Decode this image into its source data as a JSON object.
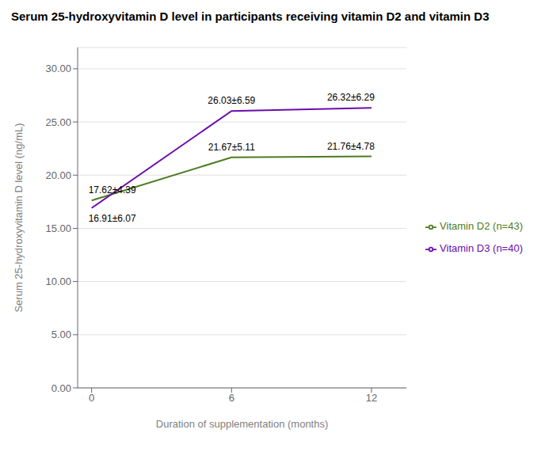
{
  "chart_data": {
    "type": "line",
    "title": "Serum 25-hydroxyvitamin D level in participants receiving vitamin D2 and vitamin D3",
    "xlabel": "Duration of supplementation (months)",
    "ylabel": "Serum 25-hydroxyvitamin D level (ng/mL)",
    "x": [
      0,
      6,
      12
    ],
    "series": [
      {
        "name": "Vitamin D2 (n=43)",
        "color": "#4d7c1f",
        "values": [
          17.62,
          21.67,
          21.76
        ],
        "value_labels": [
          "17.62±4.39",
          "21.67±5.11",
          "21.76±4.78"
        ]
      },
      {
        "name": "Vitamin D3 (n=40)",
        "color": "#6a0dad",
        "values": [
          16.91,
          26.03,
          26.32
        ],
        "value_labels": [
          "16.91±6.07",
          "26.03±6.59",
          "26.32±6.29"
        ]
      }
    ],
    "xlim": [
      -0.6,
      13.5
    ],
    "xticks": [
      0,
      6,
      12
    ],
    "ylim": [
      0.0,
      32.0
    ],
    "yticks": [
      {
        "value": 0.0,
        "label": "0.00"
      },
      {
        "value": 5.0,
        "label": "5.00"
      },
      {
        "value": 10.0,
        "label": "10.00"
      },
      {
        "value": 15.0,
        "label": "15.00"
      },
      {
        "value": 20.0,
        "label": "20.00"
      },
      {
        "value": 25.0,
        "label": "25.00"
      },
      {
        "value": 30.0,
        "label": "30.00"
      }
    ],
    "grid": "y",
    "legend": "right",
    "data_labels": true
  }
}
